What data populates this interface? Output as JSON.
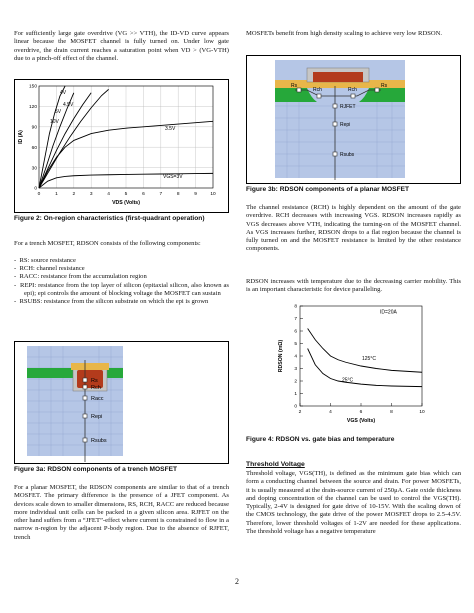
{
  "page_number": "2",
  "left": {
    "intro_para": "For sufficiently large gate overdrive (VG >> VTH), the ID-VD curve appears linear because the MOSFET channel is fully turned on. Under low gate overdrive, the drain current reaches a saturation point when VD > (VG-VTH) due to a pinch-off effect of the channel.",
    "fig2": {
      "caption": "Figure 2: On-region characteristics (first-quadrant operation)",
      "curve_labels": [
        "4V",
        "4.5V",
        "5V",
        "10V",
        "3.5V",
        "VGS=3V"
      ]
    },
    "trench_intro": "For a trench MOSFET, RDSON consists of the following components:",
    "bullets": [
      "RS: source resistance",
      "RCH: channel resistance",
      "RACC: resistance from the accumulation region",
      "REPI: resistance from the top layer of silicon (epitaxial silicon, also known as epi); epi controls the amount of blocking voltage the MOSFET can sustain",
      "RSUBS: resistance from the silicon substrate on which the epi is grown"
    ],
    "fig3a": {
      "caption": "Figure 3a: RDSON components of a trench MOSFET",
      "labels": [
        "Rs",
        "Rch",
        "Racc",
        "Repi",
        "Rsubs"
      ]
    },
    "planar_para": "For a planar MOSFET, the RDSON components are similar to that of a trench MOSFET. The primary difference is the presence of a JFET component. As devices scale down to smaller dimensions, RS, RCH, RACC are reduced because more individual unit cells can be packed in a given silicon area. RJFET on the other hand suffers from a “JFET”-effect where current is constrained to flow in a narrow n-region by the adjacent P-body region.   Due to the absence of RJFET, trench"
  },
  "right": {
    "intro_para": "MOSFETs benefit from high density scaling to achieve very low RDSON.",
    "fig3b": {
      "caption": "Figure 3b: RDSON components of a planar MOSFET",
      "labels": [
        "Rs",
        "Rch",
        "Rch",
        "Rs",
        "RJFET",
        "Repi",
        "Rsubs"
      ]
    },
    "channel_para": "The channel resistance (RCH) is highly dependent on the amount of the gate overdrive. RCH decreases with increasing VGS.  RDSON increases rapidly as VGS decreases above VTH, indicating the turning-on of the MOSFET channel. As VGS increases further, RDSON drops to a flat region because the channel is fully turned on and the MOSFET resistance is limited by the other resistance components.",
    "temp_para": "RDSON increases with temperature due to the decreasing carrier mobility. This is an important characteristic for device paralleling.",
    "fig4": {
      "caption": "Figure 4: RDSON vs. gate bias and temperature",
      "annotation": "ID=20A",
      "series_labels": [
        "125°C",
        "25°C"
      ]
    },
    "threshold_heading": "Threshold Voltage",
    "threshold_para": "Threshold voltage, VGS(TH), is defined as the minimum gate bias which can form a conducting channel between the source and drain. For power MOSFETs, it is usually measured at the drain-source current of 250μA. Gate oxide thickness and doping concentration of the channel can be used to control the VGS(TH). Typically, 2-4V is designed for gate drive of 10-15V. With the scaling down of the CMOS technology, the gate drive of the power MOSFET drops to 2.5-4.5V. Therefore, lower threshold voltages of 1-2V are needed for these applications. The threshold voltage has a negative temperature"
  },
  "chart_data": [
    {
      "type": "line",
      "title": "",
      "xlabel": "VDS (Volts)",
      "ylabel": "ID (A)",
      "xlim": [
        0,
        10
      ],
      "ylim": [
        0,
        150
      ],
      "x_ticks": [
        "0",
        "1",
        "2",
        "3",
        "4",
        "5",
        "6",
        "7",
        "8",
        "9",
        "10"
      ],
      "y_ticks": [
        "0",
        "30",
        "60",
        "90",
        "120",
        "150"
      ],
      "grid": true,
      "series": [
        {
          "name": "10V",
          "x": [
            0,
            0.3,
            0.6,
            0.9,
            1.2,
            1.5
          ],
          "y": [
            0,
            40,
            80,
            110,
            135,
            150
          ]
        },
        {
          "name": "5V",
          "x": [
            0,
            0.4,
            0.8,
            1.2,
            1.6,
            2.0
          ],
          "y": [
            0,
            30,
            62,
            90,
            116,
            140
          ]
        },
        {
          "name": "4.5V",
          "x": [
            0,
            0.5,
            1.0,
            1.5,
            2.0,
            2.5,
            3.0
          ],
          "y": [
            0,
            28,
            55,
            80,
            102,
            122,
            140
          ]
        },
        {
          "name": "4V",
          "x": [
            0,
            0.6,
            1.2,
            1.8,
            2.4,
            3.0,
            3.6,
            4.0
          ],
          "y": [
            0,
            26,
            52,
            76,
            98,
            118,
            136,
            145
          ]
        },
        {
          "name": "3.5V",
          "x": [
            0,
            0.5,
            1,
            1.5,
            2,
            3,
            4,
            5,
            6,
            7,
            8,
            9,
            10
          ],
          "y": [
            0,
            25,
            45,
            60,
            70,
            80,
            85,
            88,
            90,
            92,
            94,
            96,
            98
          ]
        },
        {
          "name": "VGS=3V",
          "x": [
            0,
            0.5,
            1,
            1.5,
            2,
            3,
            4,
            5,
            6,
            7,
            8,
            9,
            10
          ],
          "y": [
            0,
            10,
            15,
            17,
            18,
            19,
            19.5,
            20,
            20.3,
            20.6,
            20.9,
            21.2,
            21.5
          ]
        }
      ]
    },
    {
      "type": "line",
      "title": "",
      "xlabel": "VGS (Volts)",
      "ylabel": "RDSON (mΩ)",
      "xlim": [
        0,
        10
      ],
      "ylim": [
        0,
        8
      ],
      "x_ticks": [
        "2",
        "4",
        "6",
        "8",
        "10"
      ],
      "y_ticks": [
        "0",
        "1",
        "2",
        "3",
        "4",
        "5",
        "6",
        "7",
        "8"
      ],
      "grid": false,
      "series": [
        {
          "name": "125°C",
          "x": [
            2.5,
            3,
            3.5,
            4,
            4.5,
            5,
            6,
            7,
            8,
            10
          ],
          "y": [
            6.2,
            5.3,
            4.6,
            4.0,
            3.7,
            3.5,
            3.2,
            3.0,
            2.85,
            2.7
          ]
        },
        {
          "name": "25°C",
          "x": [
            2.5,
            3,
            3.5,
            4,
            4.5,
            5,
            6,
            7,
            8,
            10
          ],
          "y": [
            4.6,
            3.3,
            2.6,
            2.2,
            2.0,
            1.9,
            1.75,
            1.65,
            1.6,
            1.55
          ]
        }
      ]
    }
  ]
}
